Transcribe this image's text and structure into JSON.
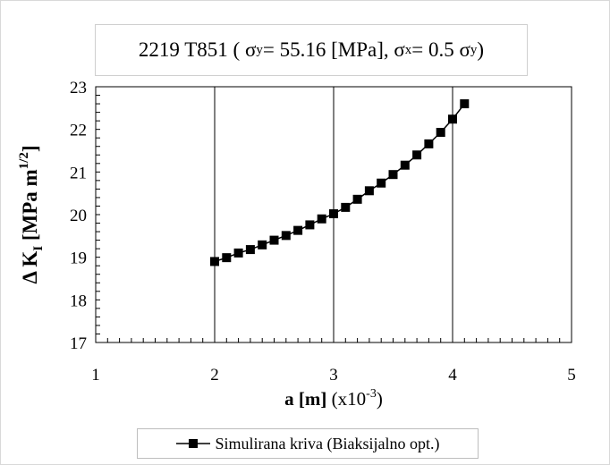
{
  "title": {
    "prefix": "2219 T851 ( σ",
    "sub_y1": "y",
    "mid1": "= 55.16 [MPa], σ",
    "sub_x": "x",
    "mid2": "= 0.5 σ",
    "sub_y2": "y",
    "suffix": ")"
  },
  "chart_data": {
    "type": "line",
    "x_axis": {
      "label_bold": "a [m]",
      "label_normal": " (x10",
      "label_exponent": "-3",
      "label_close": ")",
      "range": [
        1,
        5
      ],
      "ticks": [
        1,
        2,
        3,
        4,
        5
      ],
      "minor_step": 0.1
    },
    "y_axis": {
      "label_prefix": "Δ K",
      "label_subscript": "I",
      "label_units": " [MPa m",
      "label_exponent": "1/2",
      "label_close": "]",
      "range": [
        17,
        23
      ],
      "ticks": [
        17,
        18,
        19,
        20,
        21,
        22,
        23
      ],
      "minor_step": 0.2
    },
    "series": [
      {
        "name": "Simulirana kriva (Biaksijalno opt.)",
        "marker": "square",
        "color": "#000000",
        "x": [
          2.0,
          2.1,
          2.2,
          2.3,
          2.4,
          2.5,
          2.6,
          2.7,
          2.8,
          2.9,
          3.0,
          3.1,
          3.2,
          3.3,
          3.4,
          3.5,
          3.6,
          3.7,
          3.8,
          3.9,
          4.0,
          4.1
        ],
        "y": [
          18.9,
          18.99,
          19.1,
          19.18,
          19.29,
          19.4,
          19.51,
          19.63,
          19.76,
          19.9,
          20.02,
          20.17,
          20.36,
          20.56,
          20.74,
          20.94,
          21.16,
          21.4,
          21.66,
          21.93,
          22.24,
          22.6
        ]
      }
    ],
    "grid": {
      "vertical": true,
      "horizontal": false
    },
    "legend": "bottom"
  }
}
